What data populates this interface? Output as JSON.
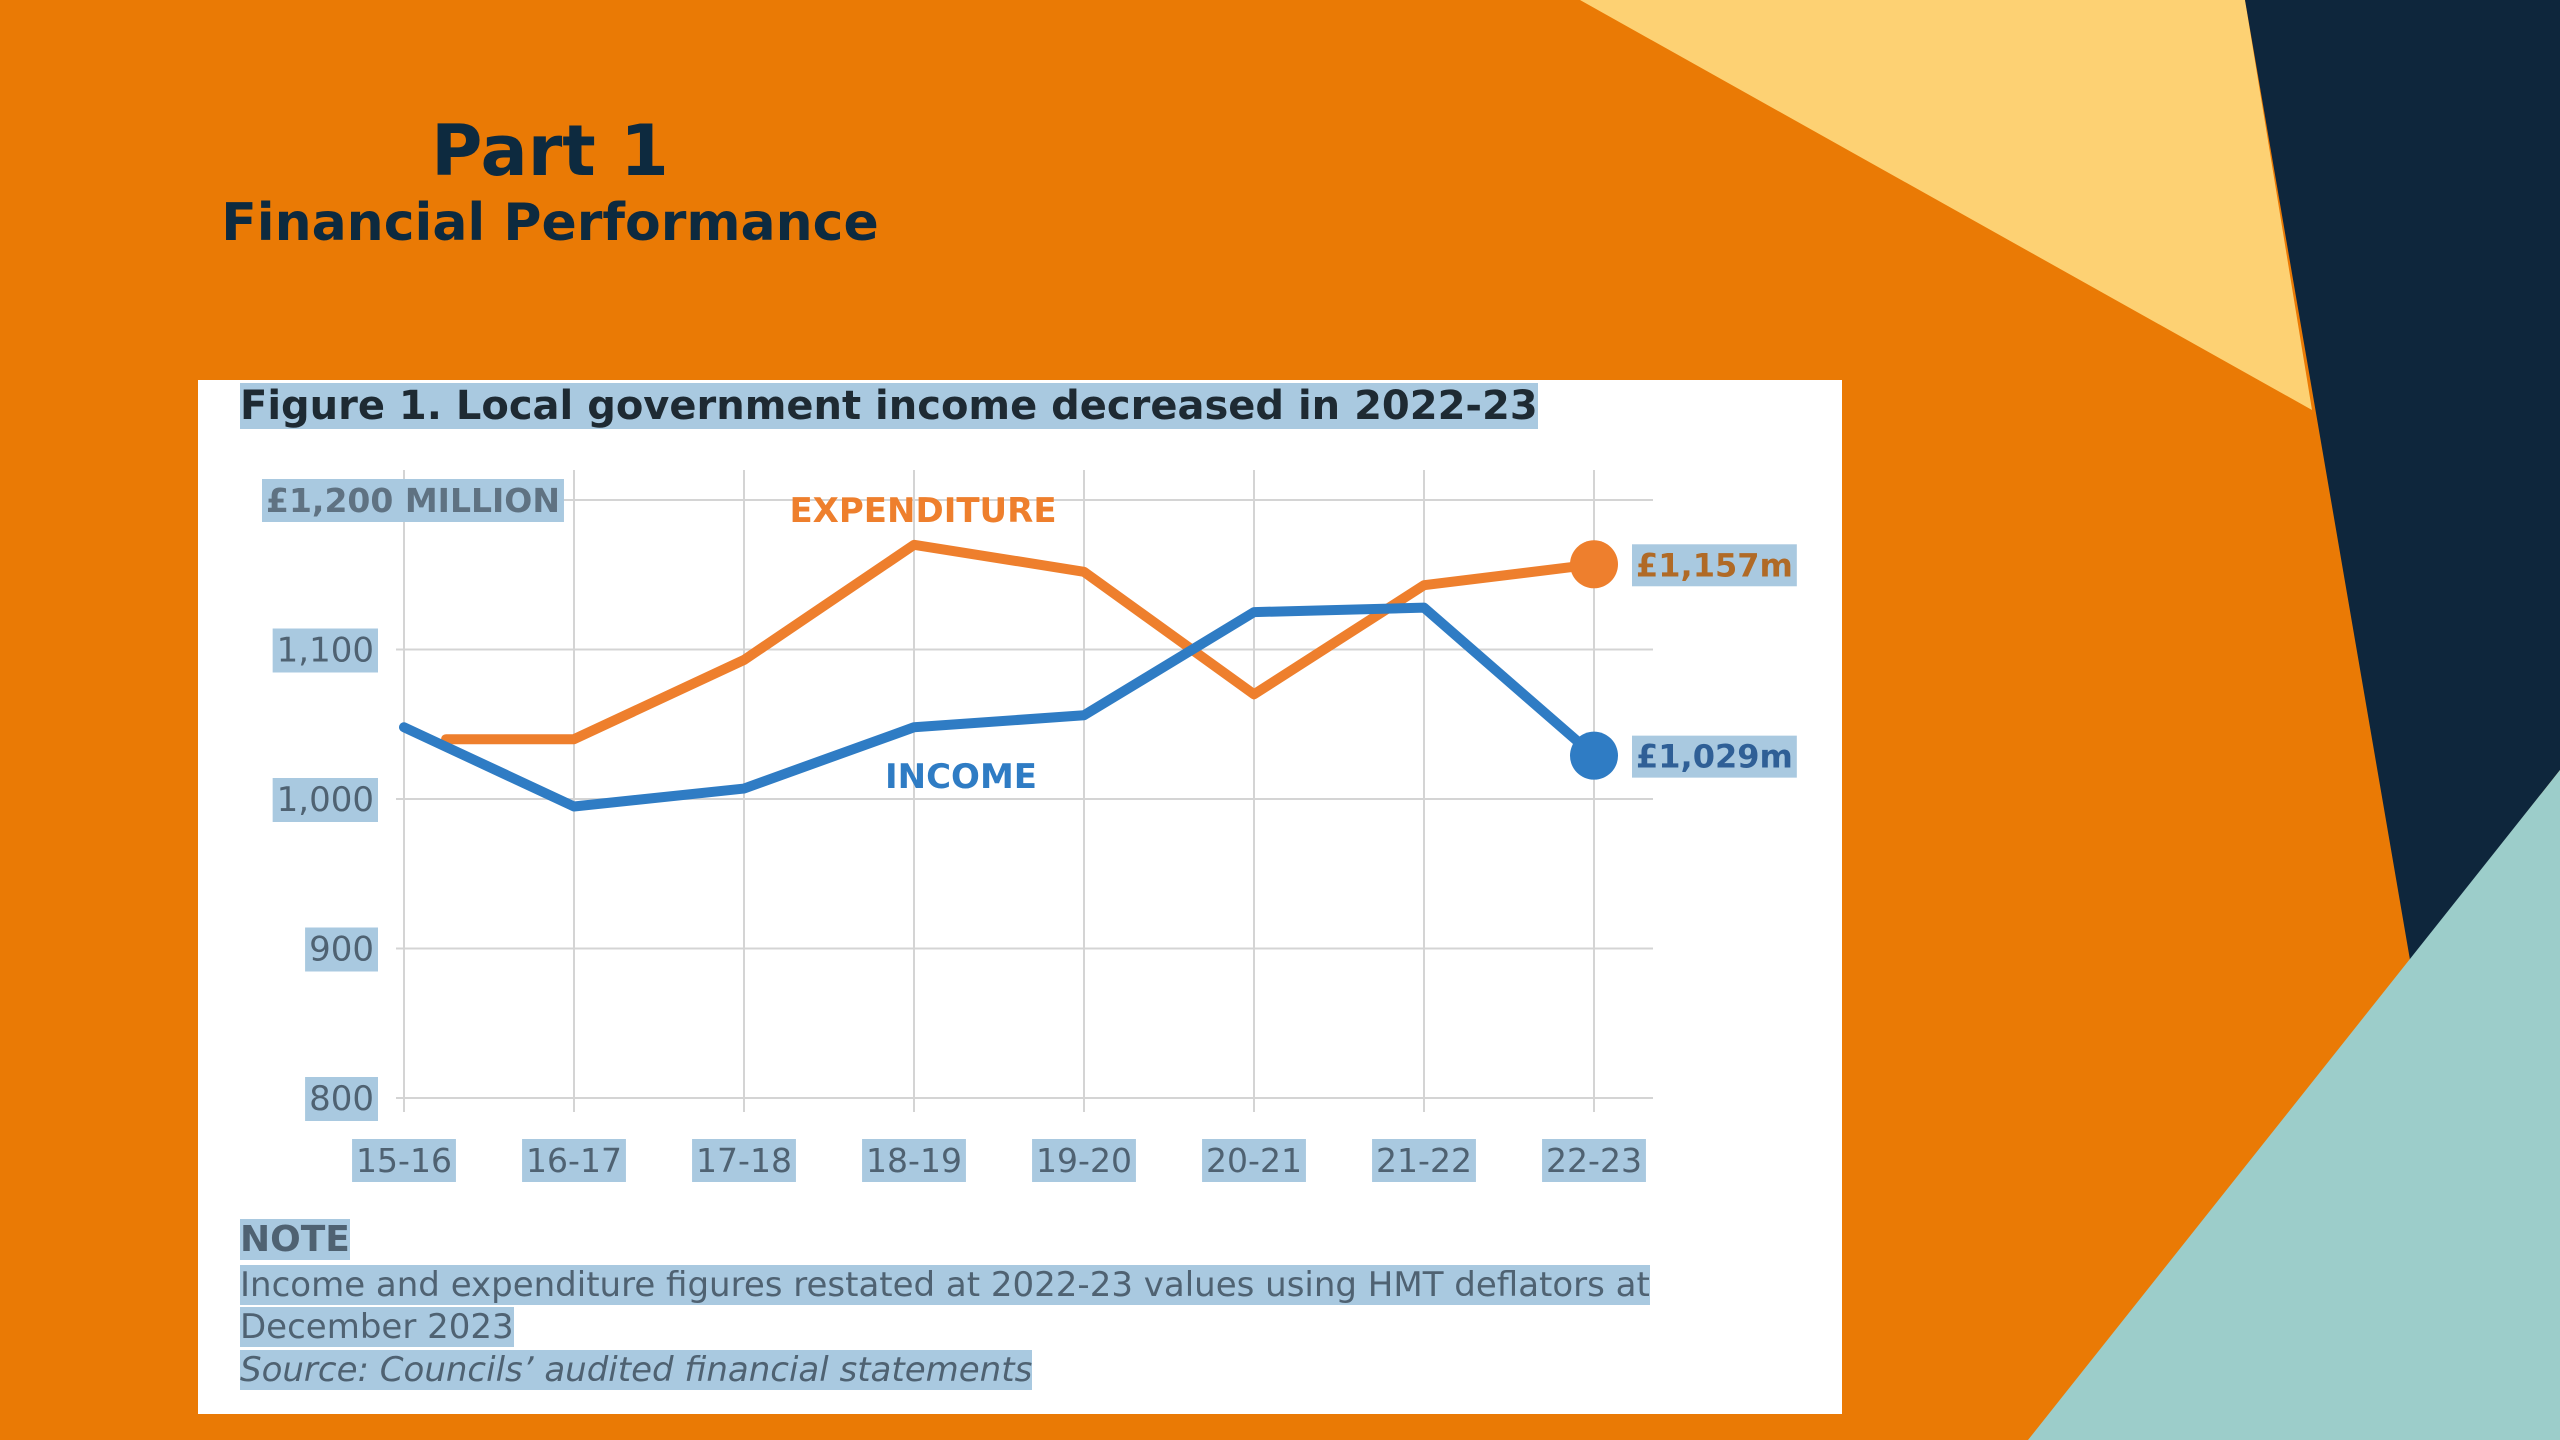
{
  "slide": {
    "title": "Part 1",
    "subtitle": "Financial Performance",
    "colors": {
      "orange": "#ea7a05",
      "navy": "#0e263c",
      "light_yellow": "#fdd173",
      "teal": "#9ccdca"
    }
  },
  "figure": {
    "title": "Figure 1. Local government income decreased in 2022-23",
    "note_heading": "NOTE",
    "note_line1": "Income and expenditure figures restated at 2022-23 values using HMT deflators at",
    "note_line2": "December 2023",
    "source": "Source: Councils’ audited financial statements"
  },
  "chart_data": {
    "type": "line",
    "title": "Figure 1. Local government income decreased in 2022-23",
    "ylabel": "£1,200 MILLION",
    "xlabel": "",
    "categories": [
      "15-16",
      "16-17",
      "17-18",
      "18-19",
      "19-20",
      "20-21",
      "21-22",
      "22-23"
    ],
    "ylim": [
      800,
      1200
    ],
    "yticks": [
      800,
      900,
      1000,
      1100,
      1200
    ],
    "ytick_labels": [
      "800",
      "900",
      "1,000",
      "1,100",
      "£1,200 MILLION"
    ],
    "grid": true,
    "series": [
      {
        "name": "EXPENDITURE",
        "color": "#ee7f2d",
        "values": [
          1040,
          1040,
          1093,
          1170,
          1152,
          1070,
          1143,
          1157
        ],
        "end_label": "£1,157m"
      },
      {
        "name": "INCOME",
        "color": "#2f7cc4",
        "values": [
          1048,
          995,
          1007,
          1048,
          1056,
          1125,
          1128,
          1029
        ],
        "end_label": "£1,029m"
      }
    ]
  }
}
